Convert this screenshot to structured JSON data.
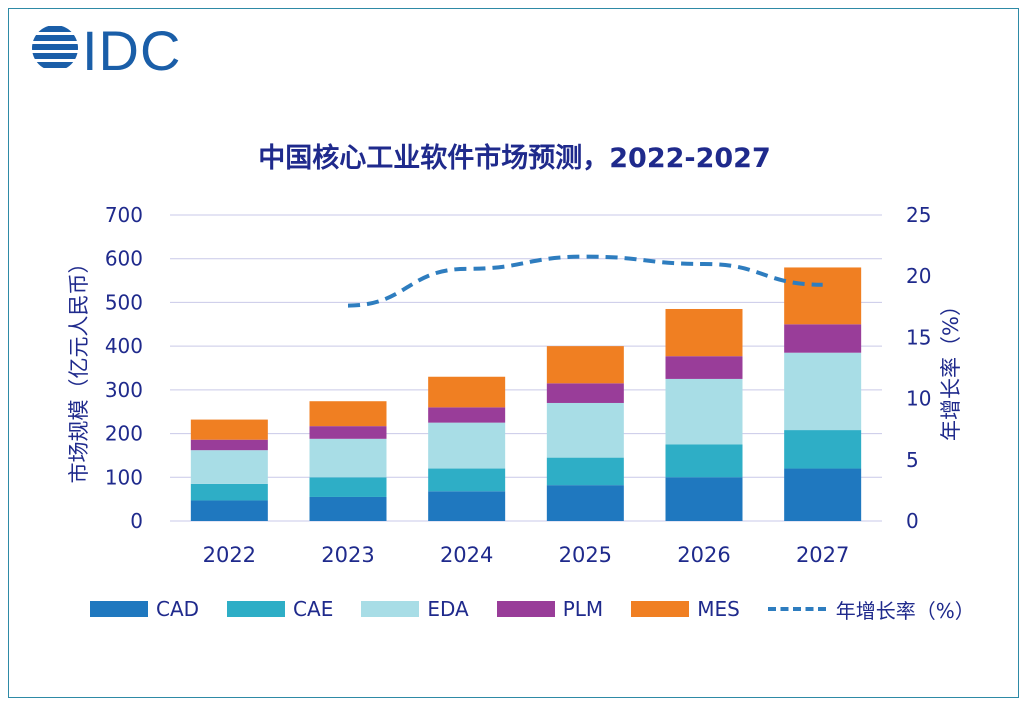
{
  "logo": {
    "text": "IDC",
    "icon": "idc-globe-icon",
    "color": "#1a5ea8"
  },
  "chart_data": {
    "type": "bar",
    "stacked": true,
    "title": "中国核心工业软件市场预测，2022-2027",
    "categories": [
      "2022",
      "2023",
      "2024",
      "2025",
      "2026",
      "2027"
    ],
    "series": [
      {
        "name": "CAD",
        "color": "#1f78bf",
        "values": [
          47,
          55,
          68,
          82,
          100,
          120
        ]
      },
      {
        "name": "CAE",
        "color": "#2eaec6",
        "values": [
          38,
          45,
          52,
          63,
          75,
          88
        ]
      },
      {
        "name": "EDA",
        "color": "#a8dde6",
        "values": [
          77,
          88,
          105,
          125,
          150,
          177
        ]
      },
      {
        "name": "PLM",
        "color": "#993d99",
        "values": [
          24,
          29,
          35,
          45,
          52,
          65
        ]
      },
      {
        "name": "MES",
        "color": "#f07f22",
        "values": [
          46,
          57,
          70,
          85,
          108,
          130
        ]
      }
    ],
    "line_series": {
      "name": "年增长率（%）",
      "color": "#2e7dbf",
      "axis": "right",
      "values": [
        null,
        17.6,
        20.6,
        21.6,
        21.0,
        19.3
      ]
    },
    "ylabel": "市场规模（亿元人民币）",
    "y2label": "年增长率（%）",
    "ylim": [
      0,
      700
    ],
    "y2lim": [
      0,
      25
    ],
    "yticks": [
      "0",
      "100",
      "200",
      "300",
      "400",
      "500",
      "600",
      "700"
    ],
    "y2ticks": [
      "0",
      "5",
      "10",
      "15",
      "20",
      "25"
    ],
    "grid": true,
    "legend_position": "bottom"
  }
}
